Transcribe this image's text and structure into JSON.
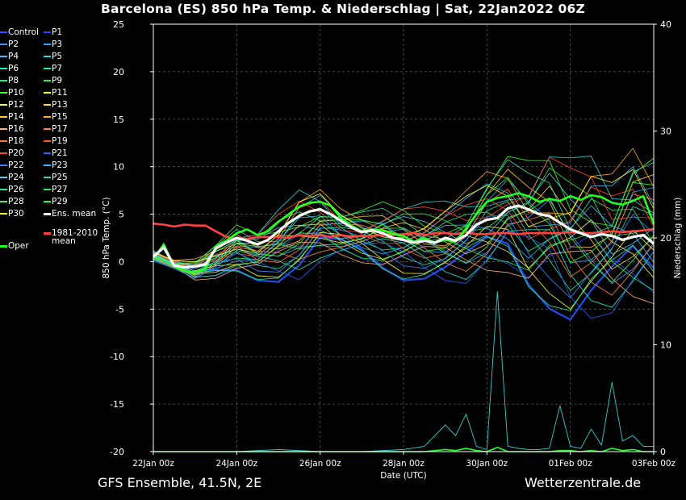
{
  "header": {
    "title": "Barcelona  (ES)  850 hPa Temp. & Niederschlag | Sat, 22Jan2022 06Z"
  },
  "footer": {
    "left": "GFS Ensemble, 41.5N, 2E",
    "right": "Wetterzentrale.de"
  },
  "colors": {
    "background": "#000000",
    "grid": "#5a5a5a",
    "ens_mean": "#ffffff",
    "oper": "#22ff22",
    "climate_mean": "#ff4040"
  },
  "legend": {
    "members": [
      {
        "label": "Control",
        "color": "#2255ff"
      },
      {
        "label": "P1",
        "color": "#3344ff"
      },
      {
        "label": "P2",
        "color": "#3399ff"
      },
      {
        "label": "P3",
        "color": "#22aaff"
      },
      {
        "label": "P4",
        "color": "#44bbff"
      },
      {
        "label": "P5",
        "color": "#22dddd"
      },
      {
        "label": "P6",
        "color": "#22eecc"
      },
      {
        "label": "P7",
        "color": "#22ee99"
      },
      {
        "label": "P8",
        "color": "#22ee77"
      },
      {
        "label": "P9",
        "color": "#33ee44"
      },
      {
        "label": "P10",
        "color": "#44ff22"
      },
      {
        "label": "P11",
        "color": "#ffff33"
      },
      {
        "label": "P12",
        "color": "#ffee66"
      },
      {
        "label": "P13",
        "color": "#ffdd44"
      },
      {
        "label": "P14",
        "color": "#ffcc33"
      },
      {
        "label": "P15",
        "color": "#ffaa22"
      },
      {
        "label": "P16",
        "color": "#ffaa77"
      },
      {
        "label": "P17",
        "color": "#ff8844"
      },
      {
        "label": "P18",
        "color": "#ff7733"
      },
      {
        "label": "P19",
        "color": "#ff5522"
      },
      {
        "label": "P20",
        "color": "#ff4433"
      },
      {
        "label": "P21",
        "color": "#2266ff"
      },
      {
        "label": "P22",
        "color": "#3388ff"
      },
      {
        "label": "P23",
        "color": "#33bbff"
      },
      {
        "label": "P24",
        "color": "#55ccee"
      },
      {
        "label": "P25",
        "color": "#33ddaa"
      },
      {
        "label": "P26",
        "color": "#33ee88"
      },
      {
        "label": "P27",
        "color": "#22ee66"
      },
      {
        "label": "P28",
        "color": "#55ee55"
      },
      {
        "label": "P29",
        "color": "#22ff33"
      },
      {
        "label": "P30",
        "color": "#ffff22"
      }
    ],
    "ens_mean": "Ens. mean",
    "oper": "Oper",
    "climate_mean_l1": "1981-2010",
    "climate_mean_l2": "mean"
  },
  "chart_data": {
    "type": "line",
    "xlabel": "Date (UTC)",
    "ylabel": "850 hPa Temp. (°C)",
    "y2label": "Niederschlag (mm)",
    "x_unit": "hours since 22Jan 00z",
    "xlim": [
      0,
      288
    ],
    "ylim": [
      -20,
      25
    ],
    "y2lim": [
      0,
      40
    ],
    "y_ticks": [
      -20,
      -15,
      -10,
      -5,
      0,
      5,
      10,
      15,
      20,
      25
    ],
    "y2_ticks": [
      0,
      10,
      20,
      30,
      40
    ],
    "x_ticks": [
      {
        "x": 0,
        "label": "22Jan 00z"
      },
      {
        "x": 48,
        "label": "24Jan 00z"
      },
      {
        "x": 96,
        "label": "26Jan 00z"
      },
      {
        "x": 144,
        "label": "28Jan 00z"
      },
      {
        "x": 192,
        "label": "30Jan 00z"
      },
      {
        "x": 240,
        "label": "01Feb 00z"
      },
      {
        "x": 288,
        "label": "03Feb 00z"
      }
    ],
    "grid": true,
    "ens_mean": {
      "x": [
        0,
        6,
        12,
        18,
        24,
        30,
        36,
        42,
        48,
        54,
        60,
        66,
        72,
        78,
        84,
        90,
        96,
        102,
        108,
        114,
        120,
        126,
        132,
        138,
        144,
        150,
        156,
        162,
        168,
        174,
        180,
        186,
        192,
        198,
        204,
        210,
        216,
        222,
        228,
        234,
        240,
        246,
        252,
        258,
        264,
        270,
        276,
        282,
        288
      ],
      "y": [
        0.5,
        1.5,
        -0.4,
        -0.6,
        -0.5,
        -0.3,
        1.4,
        2.0,
        2.5,
        2.2,
        1.8,
        2.3,
        3.2,
        4.1,
        4.8,
        5.3,
        5.5,
        5.0,
        4.3,
        3.6,
        3.1,
        3.3,
        3.0,
        2.5,
        2.3,
        2.0,
        2.2,
        2.0,
        2.5,
        2.2,
        2.8,
        3.9,
        4.4,
        4.6,
        5.6,
        5.9,
        5.5,
        5.0,
        4.8,
        4.1,
        3.4,
        3.0,
        2.6,
        2.9,
        2.7,
        2.3,
        2.6,
        2.8,
        1.9
      ]
    },
    "oper": {
      "x": [
        0,
        6,
        12,
        18,
        24,
        30,
        36,
        42,
        48,
        54,
        60,
        66,
        72,
        78,
        84,
        90,
        96,
        102,
        108,
        114,
        120,
        126,
        132,
        138,
        144,
        150,
        156,
        162,
        168,
        174,
        180,
        186,
        192,
        198,
        204,
        210,
        216,
        222,
        228,
        234,
        240,
        246,
        252,
        258,
        264,
        270,
        276,
        282,
        288
      ],
      "y": [
        0.3,
        1.8,
        -0.5,
        -1.0,
        -1.1,
        -0.8,
        1.6,
        2.2,
        3.0,
        3.4,
        2.8,
        3.2,
        4.2,
        5.0,
        5.8,
        6.2,
        6.3,
        5.9,
        4.6,
        3.8,
        3.2,
        3.4,
        3.3,
        2.9,
        2.7,
        2.1,
        2.5,
        2.0,
        2.3,
        2.1,
        3.5,
        5.0,
        6.3,
        6.7,
        6.9,
        7.2,
        6.9,
        6.3,
        6.6,
        6.4,
        6.9,
        6.5,
        7.0,
        6.8,
        6.2,
        6.0,
        6.4,
        6.9,
        4.0
      ]
    },
    "climate_mean": {
      "x": [
        0,
        6,
        12,
        18,
        24,
        30,
        36,
        42,
        48,
        54,
        60,
        66,
        72,
        78,
        84,
        90,
        96,
        102,
        108,
        114,
        120,
        126,
        132,
        138,
        144,
        150,
        156,
        162,
        168,
        174,
        180,
        186,
        192,
        198,
        204,
        210,
        216,
        222,
        228,
        234,
        240,
        246,
        252,
        258,
        264,
        270,
        276,
        282,
        288
      ],
      "y": [
        4.0,
        3.9,
        3.7,
        3.9,
        3.8,
        3.8,
        3.2,
        2.6,
        2.4,
        2.4,
        2.6,
        2.6,
        2.6,
        2.5,
        2.8,
        2.7,
        2.8,
        2.6,
        2.8,
        2.6,
        2.7,
        2.7,
        2.8,
        2.8,
        2.9,
        3.0,
        2.8,
        3.0,
        3.0,
        2.9,
        3.1,
        2.9,
        2.9,
        3.0,
        3.0,
        2.9,
        3.0,
        3.0,
        3.0,
        3.0,
        3.1,
        3.0,
        3.0,
        3.1,
        3.2,
        3.1,
        3.2,
        3.3,
        3.4
      ]
    },
    "members_outline": {
      "x": [
        0,
        12,
        24,
        36,
        48,
        60,
        72,
        84,
        96,
        108,
        120,
        132,
        144,
        156,
        168,
        180,
        192,
        204,
        216,
        228,
        240,
        252,
        264,
        276,
        288
      ],
      "upper": [
        1.2,
        0.2,
        0.5,
        2.0,
        4.0,
        3.5,
        5.5,
        8.0,
        8.0,
        6.0,
        5.8,
        6.5,
        6.5,
        6.3,
        6.8,
        8.0,
        10.5,
        12.0,
        11.0,
        13.0,
        11.0,
        12.0,
        10.0,
        13.5,
        12.0
      ],
      "lower": [
        0.0,
        -0.8,
        -2.3,
        -2.0,
        -1.5,
        -2.0,
        -2.5,
        -2.5,
        -0.5,
        0.0,
        -0.5,
        -1.5,
        -2.0,
        -2.2,
        -2.5,
        -3.0,
        -2.5,
        -2.0,
        -4.0,
        -5.0,
        -7.0,
        -7.0,
        -6.5,
        -6.0,
        -5.5
      ]
    },
    "precip_mm": {
      "x": [
        0,
        24,
        48,
        72,
        96,
        120,
        144,
        156,
        168,
        174,
        180,
        186,
        192,
        198,
        204,
        210,
        216,
        222,
        228,
        234,
        240,
        246,
        252,
        258,
        264,
        270,
        276,
        282,
        288
      ],
      "peak": [
        0,
        0,
        0,
        0.2,
        0,
        0,
        0.2,
        0.5,
        2.5,
        1.5,
        3.5,
        0.5,
        0.2,
        15.0,
        0.5,
        0.3,
        0.2,
        0.2,
        0.3,
        4.3,
        0.5,
        0.3,
        2.1,
        0.6,
        6.5,
        1.0,
        1.5,
        0.5,
        0.5
      ],
      "mean": [
        0,
        0,
        0,
        0,
        0,
        0,
        0,
        0,
        0.2,
        0.1,
        0.3,
        0.1,
        0,
        0.4,
        0,
        0,
        0,
        0,
        0,
        0.1,
        0.1,
        0,
        0.1,
        0,
        0.3,
        0.1,
        0.2,
        0,
        0
      ]
    }
  }
}
